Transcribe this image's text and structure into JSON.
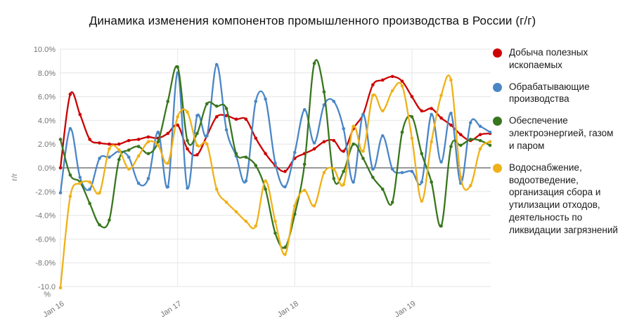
{
  "header": {
    "title": "Динамика изменения компонентов промышленного производства в России (г/г)"
  },
  "chart_data": {
    "type": "line",
    "title": "Динамика изменения компонентов промышленного производства в России (г/г)",
    "xlabel": "",
    "ylabel": "г/г",
    "ylim": [
      -10,
      10
    ],
    "ytick_step": 2,
    "ytick_labels": [
      "10.0%",
      "8.0%",
      "6.0%",
      "4.0%",
      "2.0%",
      "0.0%",
      "-2.0%",
      "-4.0%",
      "-6.0%",
      "-8.0%",
      "-10.0\n%"
    ],
    "grid": true,
    "smooth": true,
    "point_markers": true,
    "legend_position": "right",
    "zero_line_color": "#333333",
    "grid_color": "#e6e6e6",
    "axis_text_color": "#757575",
    "x": [
      "2016-01",
      "2016-02",
      "2016-03",
      "2016-04",
      "2016-05",
      "2016-06",
      "2016-07",
      "2016-08",
      "2016-09",
      "2016-10",
      "2016-11",
      "2016-12",
      "2017-01",
      "2017-02",
      "2017-03",
      "2017-04",
      "2017-05",
      "2017-06",
      "2017-07",
      "2017-08",
      "2017-09",
      "2017-10",
      "2017-11",
      "2017-12",
      "2018-01",
      "2018-02",
      "2018-03",
      "2018-04",
      "2018-05",
      "2018-06",
      "2018-07",
      "2018-08",
      "2018-09",
      "2018-10",
      "2018-11",
      "2018-12",
      "2019-01",
      "2019-02",
      "2019-03",
      "2019-04",
      "2019-05",
      "2019-06",
      "2019-07",
      "2019-08",
      "2019-09"
    ],
    "x_ticks": [
      {
        "index": 0,
        "label": "Jan 16"
      },
      {
        "index": 12,
        "label": "Jan 17"
      },
      {
        "index": 24,
        "label": "Jan 18"
      },
      {
        "index": 36,
        "label": "Jan 19"
      }
    ],
    "series": [
      {
        "name": "Добыча полезных ископаемых",
        "slug": "mining",
        "color": "#cc0000",
        "values": [
          0.0,
          6.2,
          4.5,
          2.4,
          2.1,
          2.0,
          2.0,
          2.3,
          2.4,
          2.6,
          2.5,
          2.9,
          3.6,
          1.6,
          1.1,
          2.7,
          4.3,
          4.4,
          4.1,
          4.1,
          2.5,
          1.2,
          0.2,
          -0.3,
          0.8,
          1.2,
          1.6,
          2.2,
          2.3,
          1.4,
          3.3,
          4.5,
          7.0,
          7.4,
          7.7,
          7.3,
          6.0,
          4.8,
          5.0,
          4.2,
          3.6,
          2.8,
          2.3,
          2.8,
          2.9
        ]
      },
      {
        "name": "Обрабатывающие производства",
        "slug": "manufacturing",
        "color": "#4a86c6",
        "values": [
          -2.1,
          3.3,
          -0.8,
          -1.8,
          0.8,
          0.9,
          1.4,
          0.9,
          -1.3,
          -0.9,
          3.0,
          -1.6,
          8.0,
          -1.7,
          4.4,
          2.7,
          8.7,
          3.2,
          1.0,
          -1.1,
          5.6,
          5.8,
          0.4,
          -1.6,
          1.3,
          4.9,
          2.1,
          5.3,
          5.6,
          3.3,
          -1.2,
          4.5,
          -0.1,
          2.7,
          -0.1,
          -0.4,
          -0.3,
          -1.2,
          4.5,
          0.5,
          4.6,
          -1.3,
          3.8,
          3.5,
          3.0
        ]
      },
      {
        "name": "Обеспечение электроэнергией, газом и паром",
        "slug": "electricity",
        "color": "#38761d",
        "values": [
          2.4,
          -0.6,
          -1.2,
          -3.0,
          -4.8,
          -4.4,
          0.7,
          1.5,
          1.8,
          1.2,
          2.2,
          5.6,
          8.5,
          2.3,
          2.9,
          5.4,
          5.2,
          5.0,
          1.2,
          0.9,
          0.2,
          -1.8,
          -5.5,
          -6.7,
          -3.9,
          0.3,
          8.8,
          6.4,
          -0.9,
          -0.3,
          2.0,
          0.8,
          -0.8,
          -1.8,
          -2.9,
          3.0,
          4.3,
          1.2,
          -1.2,
          -4.9,
          1.8,
          1.9,
          2.4,
          2.3,
          1.9
        ]
      },
      {
        "name": "Водоснабжение, водоотведение, организация сбора и утилизации отходов, деятельность по ликвидации загрязнений",
        "slug": "water",
        "color": "#efb118",
        "values": [
          -10.1,
          -2.4,
          -1.3,
          -1.2,
          -2.1,
          1.6,
          1.5,
          -0.1,
          1.0,
          2.2,
          1.9,
          0.4,
          4.3,
          4.7,
          1.9,
          2.0,
          -1.8,
          -2.9,
          -3.7,
          -4.5,
          -4.9,
          -1.1,
          -4.5,
          -7.3,
          -3.2,
          -1.9,
          -3.2,
          -0.4,
          -0.1,
          -1.4,
          3.5,
          1.4,
          6.1,
          4.8,
          6.5,
          6.9,
          2.5,
          -2.8,
          2.2,
          6.1,
          7.4,
          -0.8,
          -1.5,
          1.6,
          2.2
        ]
      }
    ]
  }
}
